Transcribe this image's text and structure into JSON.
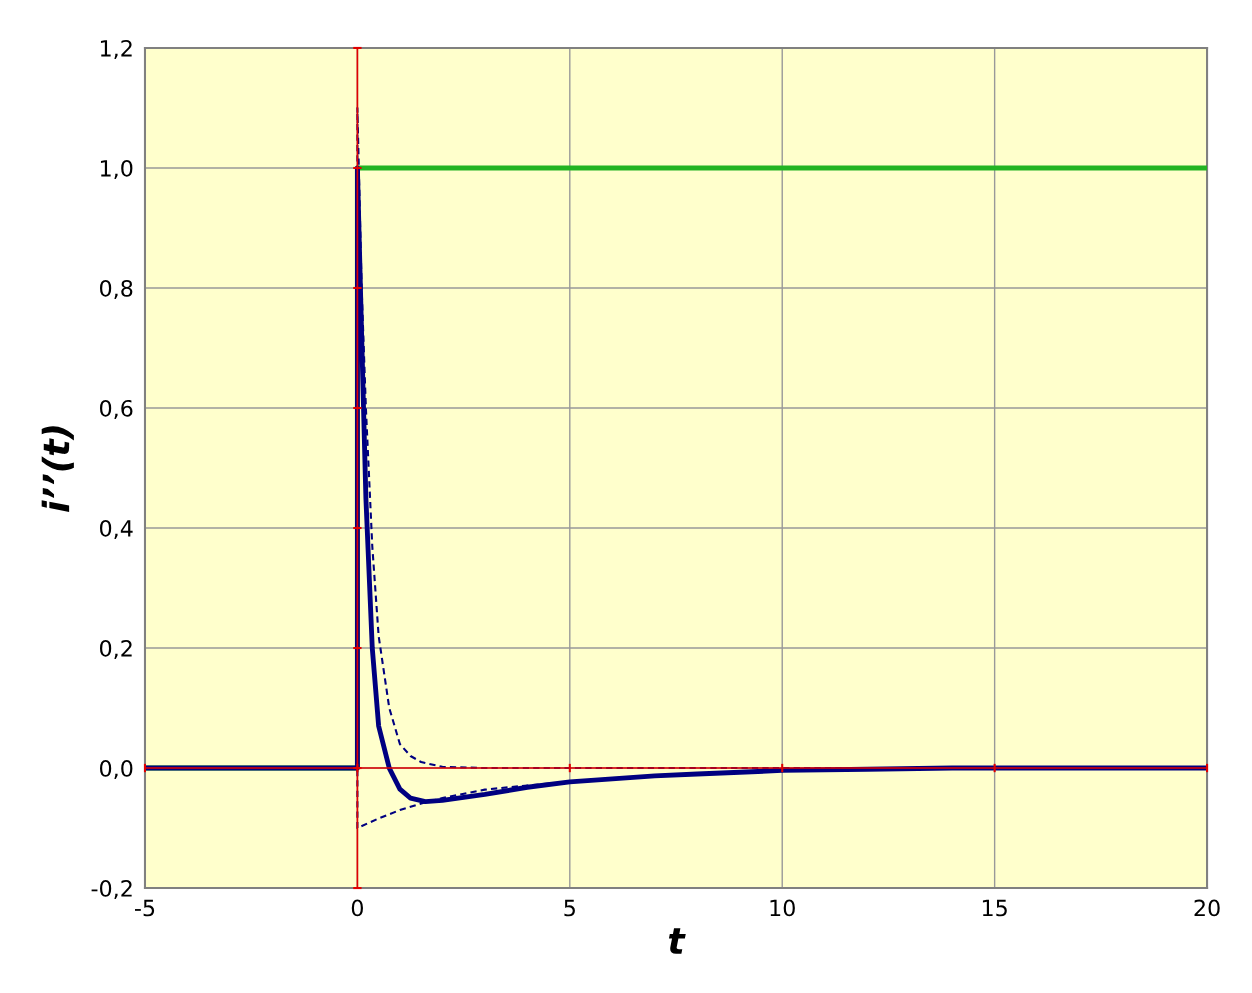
{
  "chart_data": {
    "type": "line",
    "xlabel": "t",
    "ylabel": "i’’(t)",
    "xlim": [
      -5,
      20
    ],
    "xticks": [
      -5,
      0,
      5,
      10,
      15,
      20
    ],
    "ylim": [
      -0.2,
      1.2
    ],
    "yticks": [
      {
        "value": -0.2,
        "label": "-0,2"
      },
      {
        "value": 0,
        "label": "0,0"
      },
      {
        "value": 0.2,
        "label": "0,2"
      },
      {
        "value": 0.4,
        "label": "0,4"
      },
      {
        "value": 0.6,
        "label": "0,6"
      },
      {
        "value": 0.8,
        "label": "0,8"
      },
      {
        "value": 1.0,
        "label": "1,0"
      },
      {
        "value": 1.2,
        "label": "1,2"
      }
    ],
    "grid": true,
    "legend": false,
    "marker": "none",
    "series": [
      {
        "color": "#22b422",
        "line_style": "solid",
        "x": [
          -5,
          0,
          0,
          20
        ],
        "values": [
          0,
          0,
          1,
          1
        ]
      },
      {
        "color": "#000080",
        "line_style": "dashed",
        "x": [
          5,
          4,
          3,
          2,
          1.6,
          1.0,
          0.5,
          0,
          0,
          0.1,
          0.2,
          0.35,
          0.5,
          0.75,
          1.0,
          1.25,
          1.5,
          2,
          3,
          20
        ],
        "values": [
          -0.023,
          -0.029,
          -0.036,
          -0.05,
          -0.057,
          -0.07,
          -0.084,
          -0.1,
          1.1,
          0.8,
          0.6,
          0.37,
          0.22,
          0.1,
          0.04,
          0.02,
          0.01,
          0.002,
          0,
          0
        ]
      },
      {
        "color": "#000080",
        "line_style": "solid",
        "x": [
          -5,
          0,
          0,
          0.1,
          0.2,
          0.35,
          0.5,
          0.75,
          1.0,
          1.25,
          1.6,
          2,
          3,
          4,
          5,
          6,
          7,
          8,
          9,
          10,
          12,
          14,
          20
        ],
        "values": [
          0,
          0,
          1,
          0.72,
          0.45,
          0.2,
          0.07,
          0.0,
          -0.035,
          -0.05,
          -0.056,
          -0.054,
          -0.044,
          -0.032,
          -0.023,
          -0.018,
          -0.013,
          -0.01,
          -0.007,
          -0.004,
          -0.002,
          0,
          0
        ]
      }
    ]
  }
}
